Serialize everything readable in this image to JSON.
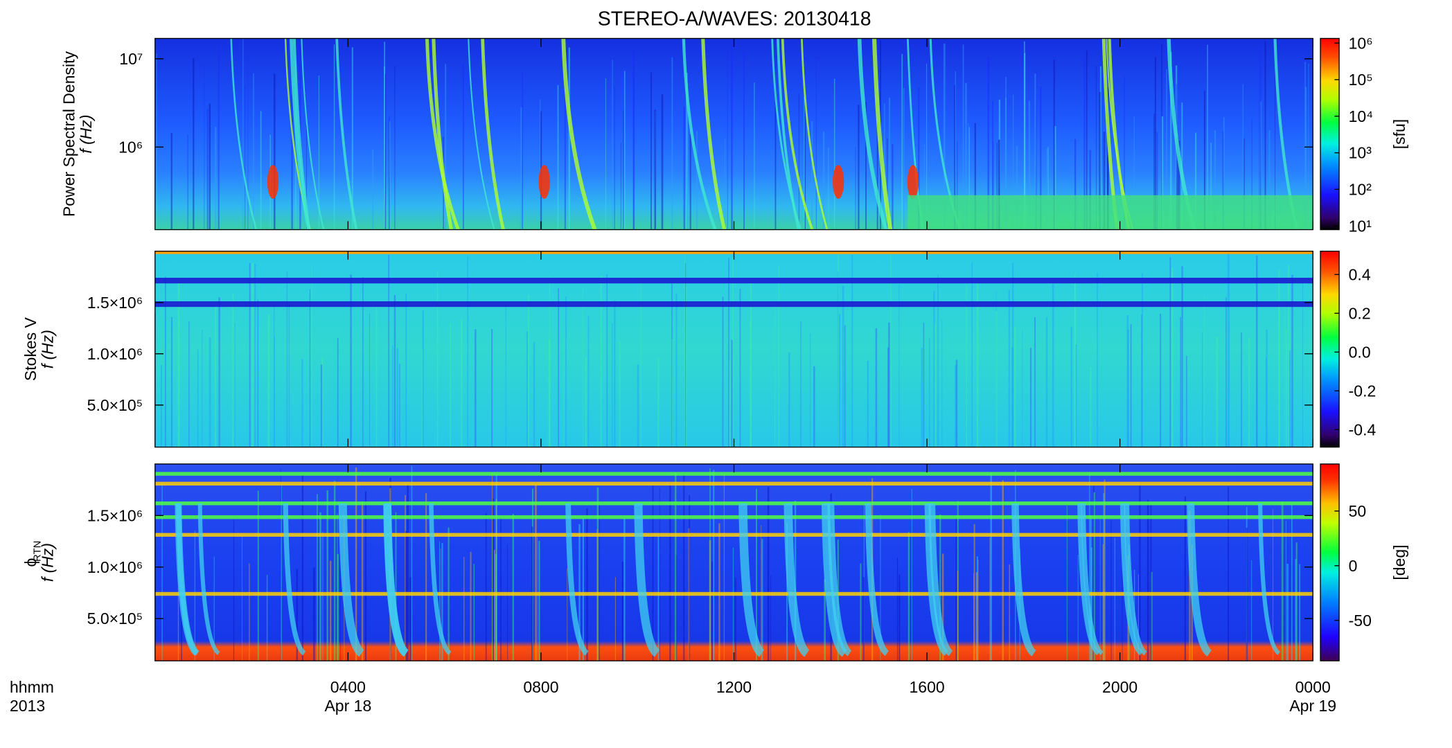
{
  "chart_data": [
    {
      "type": "spectrogram",
      "title": "STEREO-A/WAVES: 20130418",
      "ylabel": "Power Spectral Density",
      "ylabel_unit": "f (Hz)",
      "yscale": "log",
      "ylim": [
        116000,
        17000000
      ],
      "yticks": [
        {
          "value": 1000000,
          "label": "10⁶"
        },
        {
          "value": 10000000,
          "label": "10⁷"
        }
      ],
      "xlim": [
        0,
        24
      ],
      "colorbar": {
        "label": "[sfu]",
        "scale": "log",
        "lim": [
          7.9,
          1340000
        ],
        "ticks": [
          {
            "value": 10,
            "label": "10¹"
          },
          {
            "value": 100,
            "label": "10²"
          },
          {
            "value": 1000,
            "label": "10³"
          },
          {
            "value": 10000,
            "label": "10⁴"
          },
          {
            "value": 100000,
            "label": "10⁵"
          },
          {
            "value": 1000000,
            "label": "10⁶"
          }
        ]
      }
    },
    {
      "type": "spectrogram",
      "ylabel": "Stokes V",
      "ylabel_unit": "f (Hz)",
      "yscale": "linear",
      "ylim": [
        90000,
        2000000
      ],
      "yticks": [
        {
          "value": 500000,
          "label": "5.0×10⁵"
        },
        {
          "value": 1000000,
          "label": "1.0×10⁶"
        },
        {
          "value": 1500000,
          "label": "1.5×10⁶"
        }
      ],
      "xlim": [
        0,
        24
      ],
      "colorbar": {
        "scale": "linear",
        "lim": [
          -0.49,
          0.52
        ],
        "ticks": [
          {
            "value": -0.4,
            "label": "-0.4"
          },
          {
            "value": -0.2,
            "label": "-0.2"
          },
          {
            "value": 0,
            "label": "0.0"
          },
          {
            "value": 0.2,
            "label": "0.2"
          },
          {
            "value": 0.4,
            "label": "0.4"
          }
        ]
      }
    },
    {
      "type": "spectrogram",
      "ylabel": "ϕ",
      "ylabel_sub": "RTN",
      "ylabel_unit": "f (Hz)",
      "yscale": "linear",
      "ylim": [
        90000,
        2000000
      ],
      "yticks": [
        {
          "value": 500000,
          "label": "5.0×10⁵"
        },
        {
          "value": 1000000,
          "label": "1.0×10⁶"
        },
        {
          "value": 1500000,
          "label": "1.5×10⁶"
        }
      ],
      "xlim": [
        0,
        24
      ],
      "xticks": [
        {
          "value": 4,
          "label": "0400"
        },
        {
          "value": 8,
          "label": "0800"
        },
        {
          "value": 12,
          "label": "1200"
        },
        {
          "value": 16,
          "label": "1600"
        },
        {
          "value": 20,
          "label": "2000"
        },
        {
          "value": 24,
          "label": "0000"
        }
      ],
      "date_labels": [
        {
          "value": 4,
          "label": "Apr 18"
        },
        {
          "value": 24,
          "label": "Apr 19"
        }
      ],
      "xlabel": [
        "hhmm",
        "2013"
      ],
      "colorbar": {
        "label": "[deg]",
        "scale": "linear",
        "lim": [
          -87,
          93
        ],
        "ticks": [
          {
            "value": -50,
            "label": "-50"
          },
          {
            "value": 0,
            "label": "0"
          },
          {
            "value": 50,
            "label": "50"
          }
        ]
      }
    }
  ]
}
